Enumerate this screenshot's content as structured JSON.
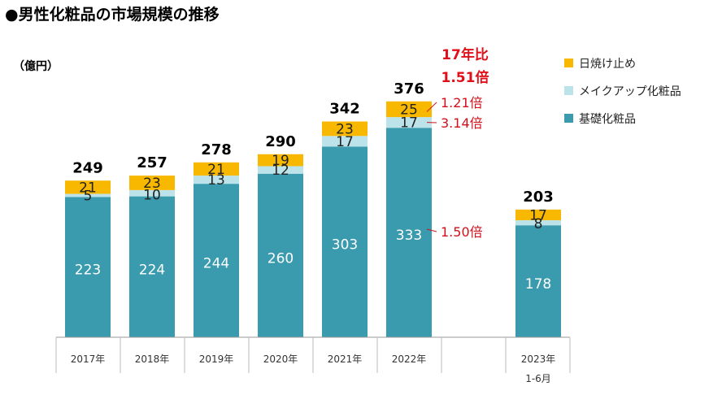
{
  "title": "●男性化粧品の市場規模の推移",
  "unit_label": "（億円）",
  "colors": {
    "base": "#3a9aae",
    "makeup": "#bde3ea",
    "sunscreen": "#f8b800",
    "annotation": "#d0101a"
  },
  "chart_data": {
    "type": "bar",
    "stacked": true,
    "title": "男性化粧品の市場規模の推移",
    "ylabel": "（億円）",
    "xlabel": "",
    "ylim": [
      0,
      390
    ],
    "categories": [
      "2017年",
      "2018年",
      "2019年",
      "2020年",
      "2021年",
      "2022年",
      "2023年"
    ],
    "category_sublabels": [
      "",
      "",
      "",
      "",
      "",
      "",
      "1-6月"
    ],
    "series": [
      {
        "name": "基礎化粧品",
        "key": "base",
        "values": [
          223,
          224,
          244,
          260,
          303,
          333,
          178
        ]
      },
      {
        "name": "メイクアップ化粧品",
        "key": "makeup",
        "values": [
          5,
          10,
          13,
          12,
          17,
          17,
          8
        ]
      },
      {
        "name": "日焼け止め",
        "key": "sunscreen",
        "values": [
          21,
          23,
          21,
          19,
          23,
          25,
          17
        ]
      }
    ],
    "totals": [
      249,
      257,
      278,
      290,
      342,
      376,
      203
    ],
    "legend": [
      "日焼け止め",
      "メイクアップ化粧品",
      "基礎化粧品"
    ],
    "legend_position": "top-right",
    "annotations": {
      "header_line1": "17年比",
      "header_line2": "1.51倍",
      "sunscreen_ratio": "1.21倍",
      "makeup_ratio": "3.14倍",
      "base_ratio": "1.50倍"
    }
  }
}
